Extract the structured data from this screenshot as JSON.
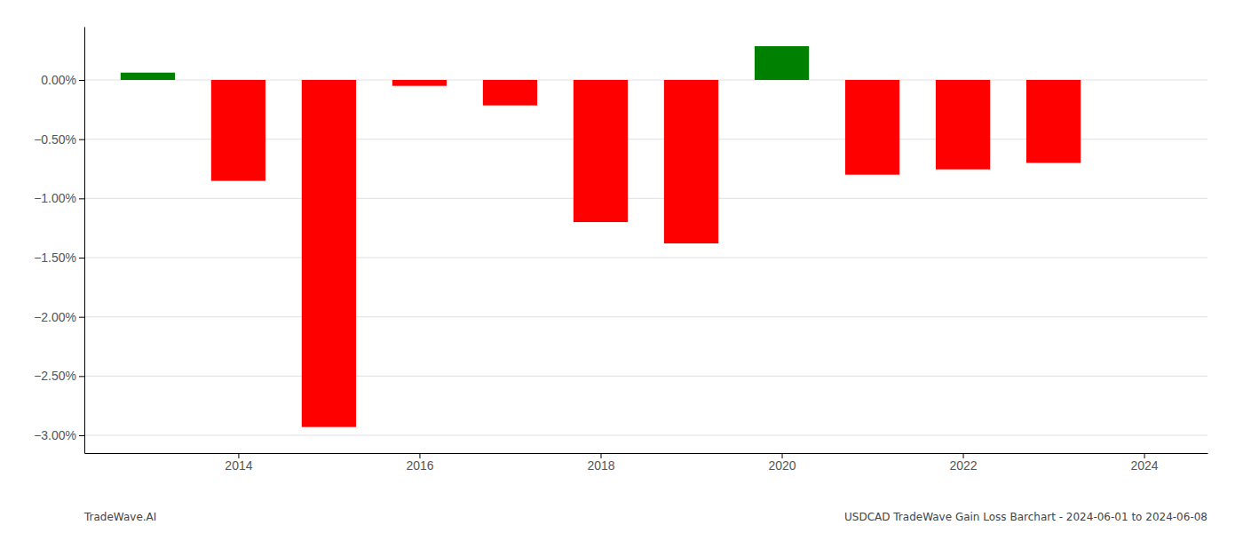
{
  "chart_data": {
    "type": "bar",
    "x": [
      2013,
      2014,
      2015,
      2016,
      2017,
      2018,
      2019,
      2020,
      2021,
      2022,
      2023
    ],
    "values": [
      0.062,
      -0.852,
      -2.93,
      -0.05,
      -0.215,
      -1.2,
      -1.38,
      0.285,
      -0.8,
      -0.755,
      -0.7
    ],
    "colors": [
      "#008000",
      "#ff0000",
      "#ff0000",
      "#ff0000",
      "#ff0000",
      "#ff0000",
      "#ff0000",
      "#008000",
      "#ff0000",
      "#ff0000",
      "#ff0000"
    ],
    "xlim": [
      2012.3,
      2024.7
    ],
    "xticks": [
      2014,
      2016,
      2018,
      2020,
      2022,
      2024
    ],
    "ylim": [
      -3.15,
      0.45
    ],
    "yticks": [
      {
        "value": 0.0,
        "label": "0.00%"
      },
      {
        "value": -0.5,
        "label": "−0.50%"
      },
      {
        "value": -1.0,
        "label": "−1.00%"
      },
      {
        "value": -1.5,
        "label": "−1.50%"
      },
      {
        "value": -2.0,
        "label": "−2.00%"
      },
      {
        "value": -2.5,
        "label": "−2.50%"
      },
      {
        "value": -3.0,
        "label": "−3.00%"
      }
    ],
    "grid": true,
    "annotations": [
      "TradeWave.AI",
      "USDCAD TradeWave Gain Loss Barchart - 2024-06-01 to 2024-06-08"
    ]
  }
}
